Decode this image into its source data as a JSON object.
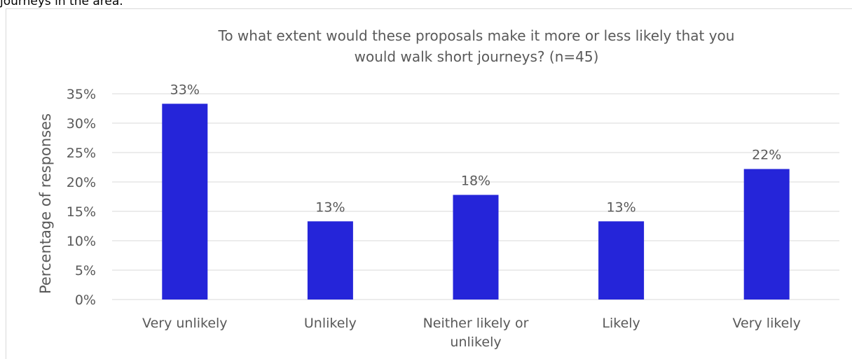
{
  "top_text": "journeys in the area.",
  "chart_data": {
    "type": "bar",
    "title_lines": [
      "To what extent would these proposals make it more or less likely that you",
      "would walk short journeys? (n=45)"
    ],
    "ylabel": "Percentage of responses",
    "xlabel": "",
    "categories": [
      [
        "Very unlikely"
      ],
      [
        "Unlikely"
      ],
      [
        "Neither likely or",
        "unlikely"
      ],
      [
        "Likely"
      ],
      [
        "Very likely"
      ]
    ],
    "values": [
      33.3,
      13.3,
      17.8,
      13.3,
      22.2
    ],
    "data_labels": [
      "33%",
      "13%",
      "18%",
      "13%",
      "22%"
    ],
    "ylim": [
      0,
      35
    ],
    "yticks": [
      0,
      5,
      10,
      15,
      20,
      25,
      30,
      35
    ],
    "ytick_labels": [
      "0%",
      "5%",
      "10%",
      "15%",
      "20%",
      "25%",
      "30%",
      "35%"
    ],
    "grid": true,
    "legend": "none",
    "bar_color": "#2525d9",
    "grid_color": "#d9d9d9"
  }
}
